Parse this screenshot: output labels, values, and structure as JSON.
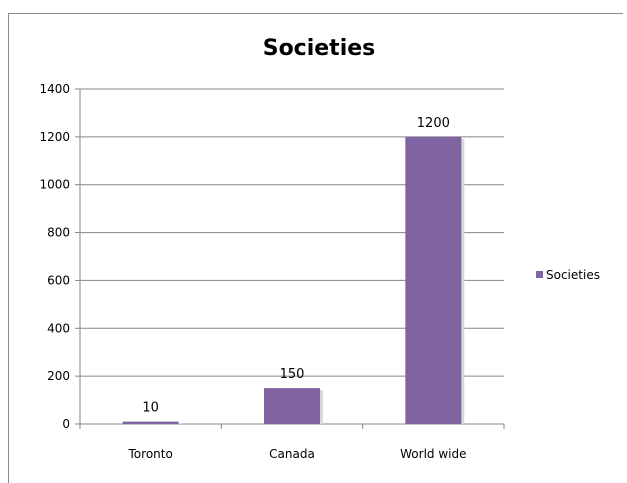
{
  "chart_data": {
    "type": "bar",
    "title": "Societies",
    "categories": [
      "Toronto",
      "Canada",
      "World wide"
    ],
    "series": [
      {
        "name": "Societies",
        "values": [
          10,
          150,
          1200
        ],
        "color": "#8064a2"
      }
    ],
    "data_labels": [
      "10",
      "150",
      "1200"
    ],
    "xlabel": "",
    "ylabel": "",
    "ylim": [
      0,
      1400
    ],
    "yticks": [
      0,
      200,
      400,
      600,
      800,
      1000,
      1200,
      1400
    ],
    "grid": true,
    "legend_position": "right"
  }
}
